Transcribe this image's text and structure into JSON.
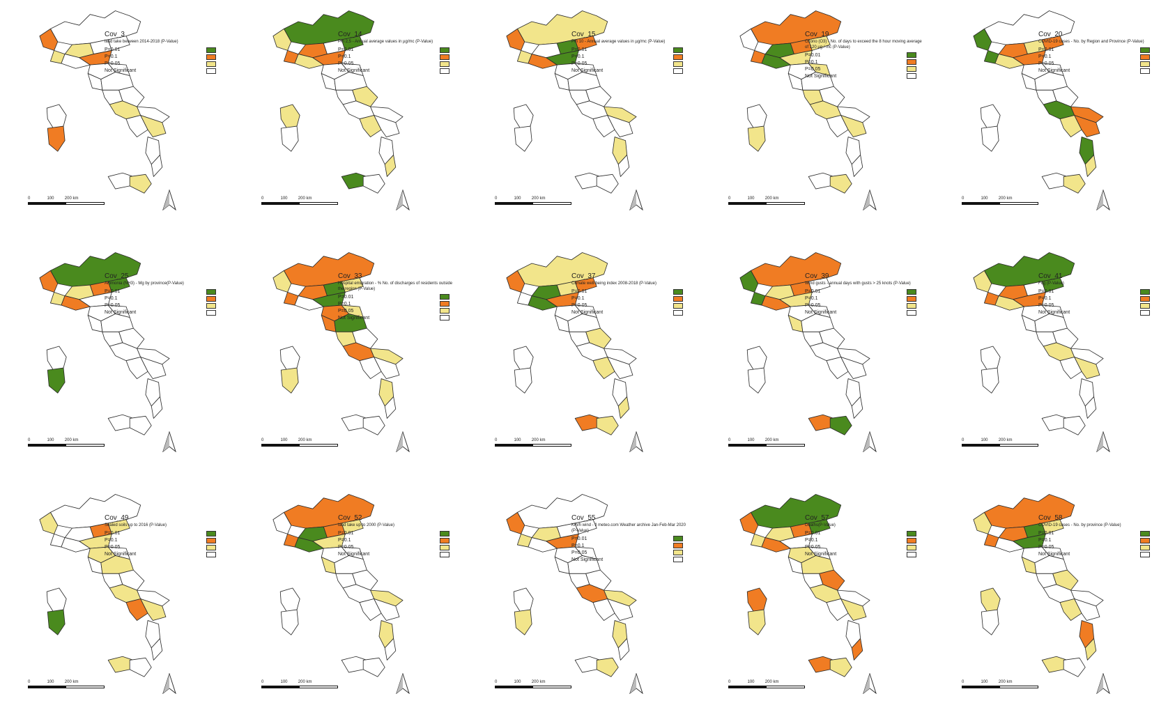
{
  "legend_levels": [
    {
      "label": "P=0.01",
      "color": "#4a8a1e"
    },
    {
      "label": "P=0.1",
      "color": "#f07c23"
    },
    {
      "label": "P=0.05",
      "color": "#f2e58b"
    },
    {
      "label": "Not Significant",
      "color": "#ffffff"
    }
  ],
  "scale_labels": [
    "0",
    "100",
    "200 km"
  ],
  "north_icon": "north-arrow-icon",
  "panels": [
    {
      "title": "Cov_3",
      "description": "land take between 2014-2018 (P-Value)",
      "fills": {
        "north": "mix_o",
        "center": "ns",
        "south": "mix_y",
        "sardinia": "mix_o",
        "sicily": "mix_y"
      }
    },
    {
      "title": "Cov_14",
      "description": "Pm 2,5 - Annual average values in µg/mc (P-Value)",
      "fills": {
        "north": "mix_go",
        "center": "ns",
        "south": "mix_y",
        "sardinia": "mix_y",
        "sicily": "mix_g"
      }
    },
    {
      "title": "Cov_15",
      "description": "Pm 10 - Annual average values in µg/mc (P-Value)",
      "fills": {
        "north": "mix_go",
        "center": "ns",
        "south": "mix_y",
        "sardinia": "mix_y",
        "sicily": "mix_y"
      }
    },
    {
      "title": "Cov_19",
      "description": "Ozono (O3) - No. of days to exceed the 8 hour moving average of 120 µg / mc (P-Value)",
      "fills": {
        "north": "mix_go",
        "center": "mix_y",
        "south": "mix_y",
        "sardinia": "mix_y",
        "sicily": "mix_y"
      }
    },
    {
      "title": "Cov_20",
      "description": "COVID-19 cases - No. by Region and Province (P-Value)",
      "fills": {
        "north": "mix_go",
        "center": "ns",
        "south": "mix_go",
        "sardinia": "mix_g",
        "sicily": "mix_o"
      }
    },
    {
      "title": "Cov_25",
      "description": "Ammonia (NH3) - Mg by province(P-Value)",
      "fills": {
        "north": "mix_go",
        "center": "ns",
        "south": "ns",
        "sardinia": "mix_g",
        "sicily": "mix_y"
      }
    },
    {
      "title": "Cov_33",
      "description": "Hospital emigration - % No. of discharges of residents outside the region (P-Value)",
      "fills": {
        "north": "mix_go",
        "center": "mix_go",
        "south": "mix_o",
        "sardinia": "mix_y",
        "sicily": "ns"
      }
    },
    {
      "title": "Cov_37",
      "description": "Climate well-being index 2008-2018 (P-Value)",
      "fills": {
        "north": "mix_go",
        "center": "ns",
        "south": "mix_y",
        "sardinia": "ns",
        "sicily": "mix_o"
      }
    },
    {
      "title": "Cov_39",
      "description": "Wind gusts - annual days with gusts > 25 knots (P-Value)",
      "fills": {
        "north": "mix_go",
        "center": "mix_y",
        "south": "ns",
        "sardinia": "ns",
        "sicily": "mix_go"
      }
    },
    {
      "title": "Cov_41",
      "description": "Fog (P-Value)",
      "fills": {
        "north": "mix_go",
        "center": "ns",
        "south": "mix_y",
        "sardinia": "mix_g",
        "sicily": "mix_o"
      }
    },
    {
      "title": "Cov_49",
      "description": "Sealed soils up to 2016 (P-Value)",
      "fills": {
        "north": "mix_o",
        "center": "mix_y",
        "south": "mix_o",
        "sardinia": "mix_g",
        "sicily": "mix_y"
      }
    },
    {
      "title": "Cov_52",
      "description": "land take up to 2000 (P-Value)",
      "fills": {
        "north": "mix_go",
        "center": "mix_y",
        "south": "mix_y",
        "sardinia": "mix_y",
        "sicily": "mix_y"
      }
    },
    {
      "title": "Cov_55",
      "description": "Km/h wind - Il meteo.com Weather archive Jan-Feb-Mar 2020 (P-Value)",
      "fills": {
        "north": "mix_o",
        "center": "ns",
        "south": "mix_o",
        "sardinia": "mix_g",
        "sicily": "mix_y"
      }
    },
    {
      "title": "Cov_57",
      "description": "Deaths(P-Value)",
      "fills": {
        "north": "mix_go",
        "center": "mix_y",
        "south": "mix_o",
        "sardinia": "mix_o",
        "sicily": "mix_o"
      }
    },
    {
      "title": "Cov_58",
      "description": "COVID-19 cases - No. by province (P-Value)",
      "fills": {
        "north": "mix_go",
        "center": "mix_y",
        "south": "mix_o",
        "sardinia": "mix_o",
        "sicily": "mix_o"
      }
    }
  ]
}
